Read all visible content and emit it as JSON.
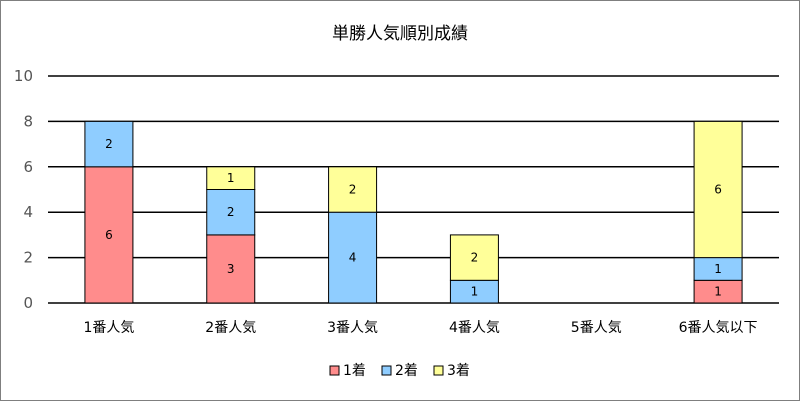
{
  "chart_data": {
    "type": "bar",
    "stacked": true,
    "title": "単勝人気順別成績",
    "categories": [
      "1番人気",
      "2番人気",
      "3番人気",
      "4番人気",
      "5番人気",
      "6番人気以下"
    ],
    "series": [
      {
        "name": "1着",
        "color": "#ff8c8c",
        "values": [
          6,
          3,
          0,
          0,
          0,
          1
        ]
      },
      {
        "name": "2着",
        "color": "#8fcdff",
        "values": [
          2,
          2,
          4,
          1,
          0,
          1
        ]
      },
      {
        "name": "3着",
        "color": "#ffff99",
        "values": [
          0,
          1,
          2,
          2,
          0,
          6
        ]
      }
    ],
    "ylim": [
      0,
      10
    ],
    "yticks": [
      0,
      2,
      4,
      6,
      8,
      10
    ],
    "grid": true,
    "legend_position": "bottom",
    "xlabel": "",
    "ylabel": ""
  }
}
